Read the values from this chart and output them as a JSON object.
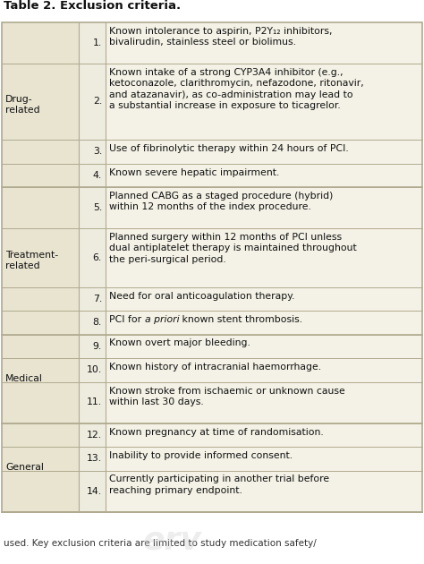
{
  "title": "Table 2. Exclusion criteria.",
  "title_fontsize": 9.5,
  "bg_color_cat": "#e8e4d0",
  "bg_color_num": "#eeecdf",
  "bg_color_content": "#f4f2e6",
  "border_color": "#b0aa90",
  "text_color": "#111111",
  "font_size": 7.8,
  "footer_fontsize": 7.5,
  "rows": [
    {
      "category": "Drug-\nrelated",
      "number": "1.",
      "text": "Known intolerance to aspirin, P2Y₁₂ inhibitors,\nbivalirudin, stainless steel or biolimus.",
      "has_italic": false,
      "lines": 2
    },
    {
      "category": "",
      "number": "2.",
      "text": "Known intake of a strong CYP3A4 inhibitor (e.g.,\nketoconazole, clarithromycin, nefazodone, ritonavir,\nand atazanavir), as co-administration may lead to\na substantial increase in exposure to ticagrelor.",
      "has_italic": false,
      "lines": 4
    },
    {
      "category": "",
      "number": "3.",
      "text": "Use of fibrinolytic therapy within 24 hours of PCI.",
      "has_italic": false,
      "lines": 1
    },
    {
      "category": "",
      "number": "4.",
      "text": "Known severe hepatic impairment.",
      "has_italic": false,
      "lines": 1
    },
    {
      "category": "Treatment-\nrelated",
      "number": "5.",
      "text": "Planned CABG as a staged procedure (hybrid)\nwithin 12 months of the index procedure.",
      "has_italic": false,
      "lines": 2
    },
    {
      "category": "",
      "number": "6.",
      "text": "Planned surgery within 12 months of PCI unless\ndual antiplatelet therapy is maintained throughout\nthe peri-surgical period.",
      "has_italic": false,
      "lines": 3
    },
    {
      "category": "",
      "number": "7.",
      "text": "Need for oral anticoagulation therapy.",
      "has_italic": false,
      "lines": 1
    },
    {
      "category": "",
      "number": "8.",
      "text_before": "PCI for ",
      "text_italic": "a priori",
      "text_after": " known stent thrombosis.",
      "has_italic": true,
      "lines": 1
    },
    {
      "category": "Medical",
      "number": "9.",
      "text": "Known overt major bleeding.",
      "has_italic": false,
      "lines": 1
    },
    {
      "category": "",
      "number": "10.",
      "text": "Known history of intracranial haemorrhage.",
      "has_italic": false,
      "lines": 1
    },
    {
      "category": "",
      "number": "11.",
      "text": "Known stroke from ischaemic or unknown cause\nwithin last 30 days.",
      "has_italic": false,
      "lines": 2
    },
    {
      "category": "General",
      "number": "12.",
      "text": "Known pregnancy at time of randomisation.",
      "has_italic": false,
      "lines": 1
    },
    {
      "category": "",
      "number": "13.",
      "text": "Inability to provide informed consent.",
      "has_italic": false,
      "lines": 1
    },
    {
      "category": "",
      "number": "14.",
      "text": "Currently participating in another trial before\nreaching primary endpoint.",
      "has_italic": false,
      "lines": 2
    }
  ],
  "footer_text": "used. Key exclusion criteria are limited to study medication safety/",
  "watermark_text": "erv",
  "watermark_color": "#cccccc"
}
